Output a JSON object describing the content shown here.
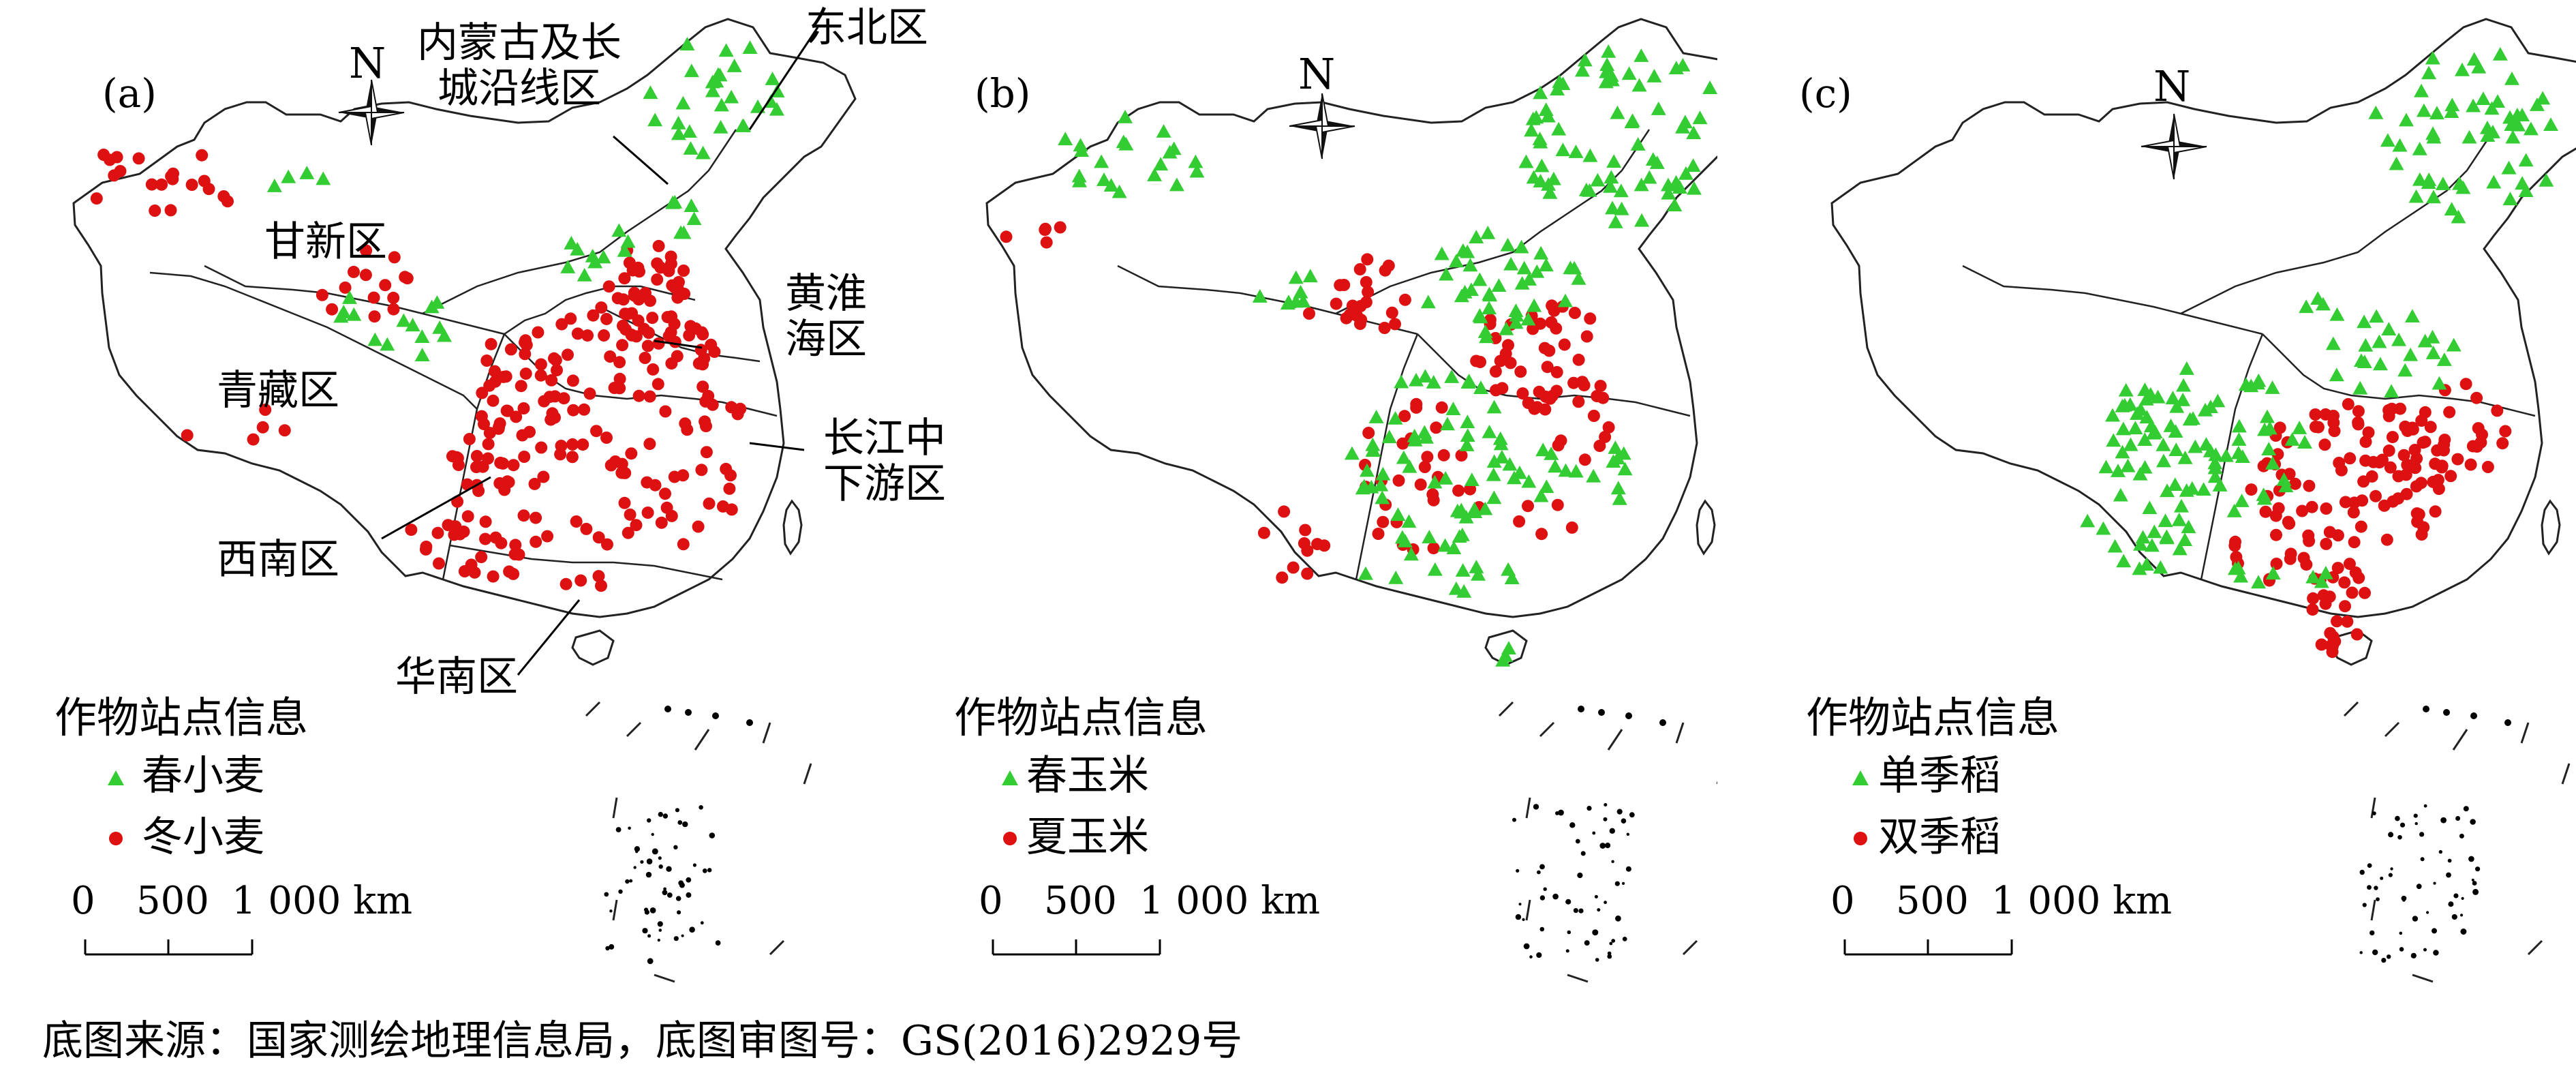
{
  "colors": {
    "triangle": "#33cc33",
    "circle": "#dd1111",
    "outline": "#222222"
  },
  "source_note": "底图来源：国家测绘地理信息局，底图审图号：GS(2016)2929号",
  "north_label": "N",
  "scale_labels": [
    "0",
    "500",
    "1 000 km"
  ],
  "legend_title": "作物站点信息",
  "panels": [
    {
      "label": "(a)",
      "legend": {
        "triangle": "春小麦",
        "circle": "冬小麦"
      },
      "regions": {
        "r1": "内蒙古及长",
        "r1b": "城沿线区",
        "r2": "东北区",
        "r3": "甘新区",
        "r4": "黄淮",
        "r4b": "海区",
        "r5": "青藏区",
        "r6": "长江中",
        "r6b": "下游区",
        "r7": "西南区",
        "r8": "华南区"
      }
    },
    {
      "label": "(b)",
      "legend": {
        "triangle": "春玉米",
        "circle": "夏玉米"
      }
    },
    {
      "label": "(c)",
      "legend": {
        "triangle": "单季稻",
        "circle": "双季稻"
      }
    }
  ]
}
